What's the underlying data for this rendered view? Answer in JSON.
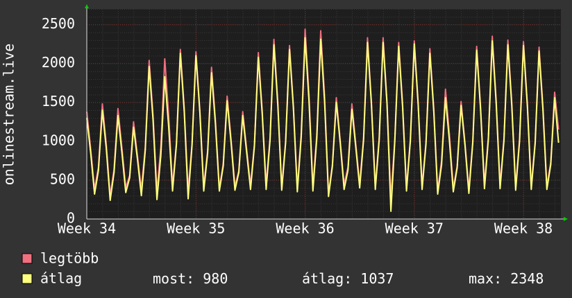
{
  "chart_data": {
    "type": "line",
    "ylabel": "onlinestream.live",
    "x": [
      0,
      0.25,
      0.5,
      0.75,
      1,
      1.25,
      1.5,
      1.75,
      2,
      2.25,
      2.5,
      2.75,
      3,
      3.25,
      3.5,
      3.75,
      4,
      4.25,
      4.5,
      4.75,
      5,
      5.25,
      5.5,
      5.75,
      6,
      6.25,
      6.5,
      6.75,
      7,
      7.25,
      7.5,
      7.75,
      8,
      8.25,
      8.5,
      8.75,
      9,
      9.25,
      9.5,
      9.75,
      10,
      10.25,
      10.5,
      10.75,
      11,
      11.25,
      11.5,
      11.75,
      12,
      12.25,
      12.5,
      12.75,
      13,
      13.25,
      13.5,
      13.75,
      14,
      14.25,
      14.5,
      14.75,
      15,
      15.25,
      15.5,
      15.75,
      16,
      16.25,
      16.5,
      16.75,
      17,
      17.25,
      17.5,
      17.75,
      18,
      18.25,
      18.5,
      18.75,
      19,
      19.25,
      19.5,
      19.75,
      20,
      20.25,
      20.5,
      20.75,
      21,
      21.25,
      21.5,
      21.75,
      22,
      22.25,
      22.5,
      22.75,
      23,
      23.25,
      23.5,
      23.75,
      24,
      24.25,
      24.5,
      24.75,
      25,
      25.25,
      25.5,
      25.75,
      26,
      26.25,
      26.5,
      26.75,
      27,
      27.25,
      27.5,
      27.75,
      28,
      28.25,
      28.5,
      28.75,
      29,
      29.25,
      29.5,
      29.75,
      30,
      30.25
    ],
    "series": [
      {
        "name": "legtöbb",
        "color": "#f07080",
        "values": [
          1380,
          900,
          380,
          670,
          1480,
          960,
          300,
          640,
          1420,
          920,
          400,
          560,
          1250,
          810,
          380,
          920,
          2040,
          1330,
          350,
          930,
          2060,
          1340,
          420,
          980,
          2180,
          1420,
          360,
          970,
          2150,
          1400,
          420,
          880,
          1950,
          1270,
          400,
          710,
          1580,
          1030,
          420,
          620,
          1380,
          900,
          430,
          960,
          2140,
          1390,
          440,
          1040,
          2310,
          1500,
          420,
          1000,
          2230,
          1450,
          400,
          1100,
          2440,
          1590,
          420,
          1090,
          2420,
          1570,
          330,
          700,
          1560,
          1010,
          440,
          670,
          1480,
          960,
          450,
          1050,
          2330,
          1510,
          420,
          1050,
          2330,
          1510,
          260,
          1020,
          2270,
          1480,
          400,
          1030,
          2290,
          1490,
          420,
          990,
          2190,
          1420,
          360,
          750,
          1670,
          1090,
          400,
          680,
          1510,
          980,
          380,
          1000,
          2220,
          1440,
          440,
          1060,
          2350,
          1530,
          440,
          1040,
          2300,
          1500,
          420,
          1030,
          2280,
          1480,
          430,
          990,
          2210,
          1440,
          420,
          730,
          1630,
          1150
        ]
      },
      {
        "name": "átlag",
        "color": "#ffff80",
        "values": [
          1300,
          850,
          320,
          630,
          1400,
          910,
          240,
          600,
          1330,
          860,
          340,
          530,
          1180,
          770,
          300,
          880,
          1960,
          1270,
          250,
          820,
          1830,
          1190,
          360,
          960,
          2130,
          1380,
          260,
          950,
          2100,
          1370,
          360,
          850,
          1880,
          1220,
          360,
          680,
          1520,
          990,
          370,
          600,
          1330,
          860,
          380,
          940,
          2080,
          1350,
          380,
          1010,
          2240,
          1460,
          370,
          980,
          2180,
          1420,
          350,
          1050,
          2330,
          1510,
          360,
          1040,
          2310,
          1500,
          290,
          680,
          1500,
          980,
          380,
          630,
          1410,
          920,
          400,
          1020,
          2270,
          1480,
          380,
          1020,
          2270,
          1480,
          100,
          1000,
          2220,
          1440,
          360,
          1010,
          2250,
          1460,
          380,
          960,
          2130,
          1380,
          320,
          700,
          1560,
          1010,
          350,
          660,
          1460,
          950,
          330,
          980,
          2170,
          1410,
          390,
          1030,
          2290,
          1490,
          390,
          1010,
          2240,
          1460,
          370,
          1000,
          2230,
          1450,
          380,
          970,
          2160,
          1400,
          380,
          700,
          1560,
          980
        ]
      }
    ],
    "xlim": [
      0,
      30.4
    ],
    "xticks": [
      {
        "value": 0,
        "label": "Week 34"
      },
      {
        "value": 7,
        "label": "Week 35"
      },
      {
        "value": 14,
        "label": "Week 36"
      },
      {
        "value": 21,
        "label": "Week 37"
      },
      {
        "value": 28,
        "label": "Week 38"
      }
    ],
    "ylim": [
      0,
      2700
    ],
    "yticks": [
      0,
      500,
      1000,
      1500,
      2000,
      2500
    ],
    "grid": true,
    "stats": [
      {
        "label": "most:",
        "value": 980
      },
      {
        "label": "átlag:",
        "value": 1037
      },
      {
        "label": "max:",
        "value": 2348
      }
    ]
  }
}
